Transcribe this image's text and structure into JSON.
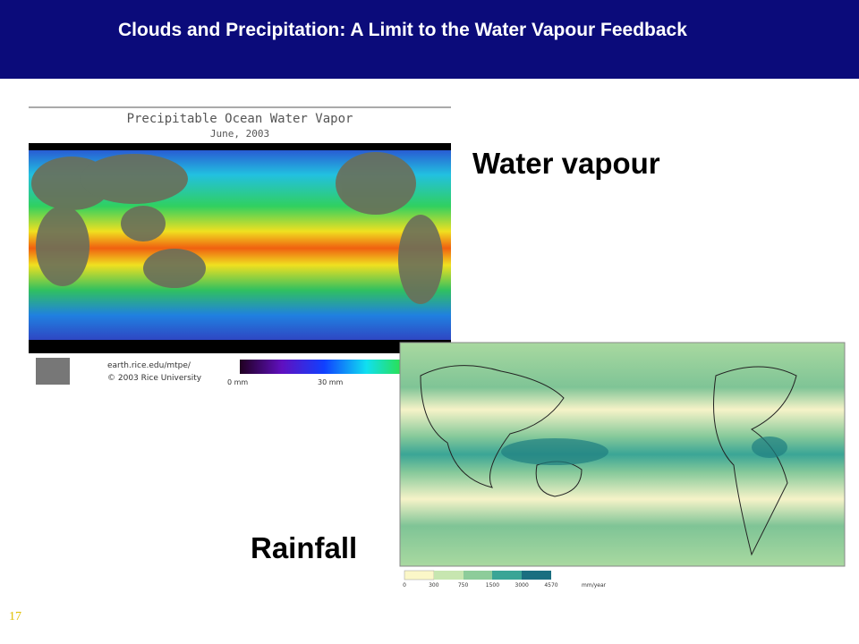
{
  "header": {
    "title": "Clouds and Precipitation: A Limit to the Water Vapour Feedback"
  },
  "labels": {
    "water_vapour": "Water vapour",
    "rainfall": "Rainfall"
  },
  "vapour_map": {
    "title": "Precipitable Ocean Water Vapor",
    "date": "June, 2003",
    "url": "earth.rice.edu/mtpe/",
    "credit": "© 2003 Rice University",
    "scale_labels": [
      "0 mm",
      "30 mm"
    ]
  },
  "rainfall_map": {
    "scale_labels": [
      "0",
      "300",
      "750",
      "1500",
      "3000",
      "4570"
    ],
    "unit": "mm/year"
  },
  "footer": {
    "page_number": "17"
  }
}
